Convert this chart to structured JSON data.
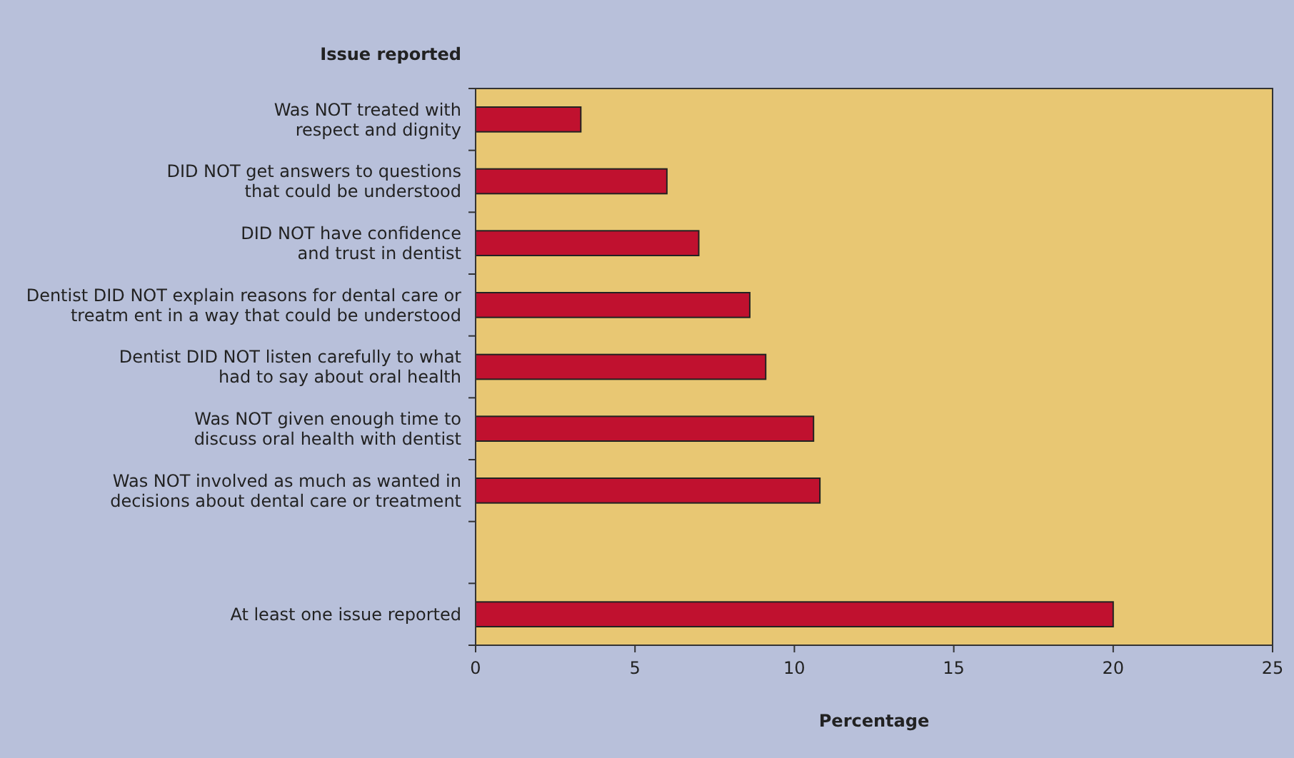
{
  "chart_data": {
    "type": "bar",
    "orientation": "horizontal",
    "ylabel": "Issue reported",
    "xlabel": "Percentage",
    "categories": [
      "Was NOT treated with\nrespect and dignity",
      "DID NOT get answers to questions\nthat could be understood",
      "DID NOT have confidence\nand trust in dentist",
      "Dentist DID NOT explain reasons for dental care or\ntreatm ent in a way that could be understood",
      "Dentist DID NOT listen carefully to what\nhad to say about oral health",
      "Was NOT given enough time to\ndiscuss oral health with dentist",
      "Was NOT involved as much as wanted in\ndecisions about dental care or treatment",
      null,
      "At least one issue reported"
    ],
    "values": [
      3.3,
      6.0,
      7.0,
      8.6,
      9.1,
      10.6,
      10.8,
      null,
      20.0
    ],
    "color": "#c0112f",
    "xlim": [
      0,
      25
    ],
    "xticks": [
      0,
      5,
      10,
      15,
      20,
      25
    ],
    "grid": false
  }
}
